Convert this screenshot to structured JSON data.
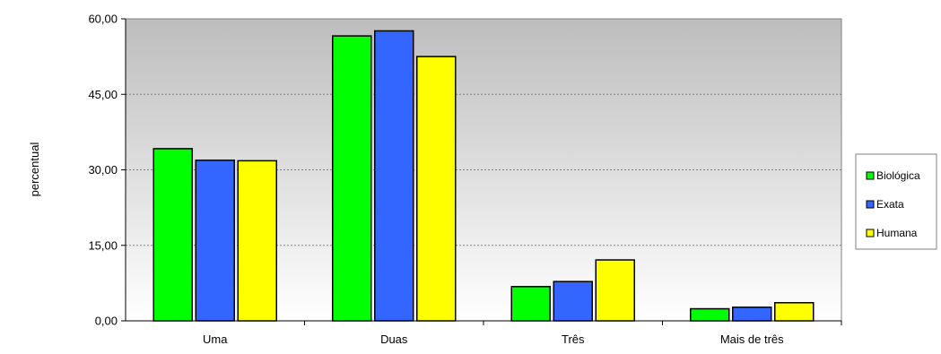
{
  "chart_data": {
    "type": "bar",
    "title": "",
    "xlabel": "",
    "ylabel": "percentual",
    "ylim": [
      0,
      60
    ],
    "yticks": [
      "0,00",
      "15,00",
      "30,00",
      "45,00",
      "60,00"
    ],
    "ytick_values": [
      0,
      15,
      30,
      45,
      60
    ],
    "categories": [
      "Uma",
      "Duas",
      "Três",
      "Mais de três"
    ],
    "series": [
      {
        "name": "Biológica",
        "color": "#00ff00",
        "values": [
          34.2,
          56.6,
          6.8,
          2.4
        ]
      },
      {
        "name": "Exata",
        "color": "#3366ff",
        "values": [
          31.9,
          57.6,
          7.8,
          2.7
        ]
      },
      {
        "name": "Humana",
        "color": "#ffff00",
        "values": [
          31.8,
          52.5,
          12.1,
          3.6
        ]
      }
    ],
    "grid": true,
    "legend_position": "right"
  }
}
